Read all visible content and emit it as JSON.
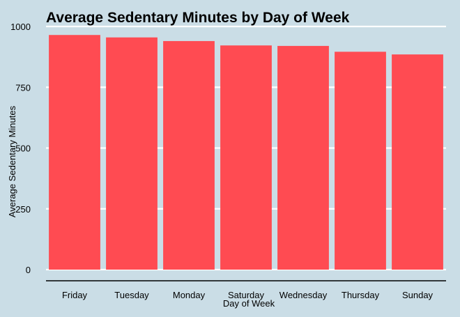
{
  "chart_data": {
    "type": "bar",
    "title": "Average Sedentary Minutes by Day of Week",
    "xlabel": "Day of Week",
    "ylabel": "Average Sedentary Minutes",
    "categories": [
      "Friday",
      "Tuesday",
      "Monday",
      "Saturday",
      "Wednesday",
      "Thursday",
      "Sunday"
    ],
    "values": [
      965,
      955,
      940,
      922,
      920,
      896,
      885
    ],
    "yticks": [
      "0",
      "250",
      "500",
      "750",
      "1000"
    ],
    "ylim": [
      0,
      1000
    ],
    "grid": "horizontal",
    "legend": "none",
    "bar_color": "#ff4b52",
    "background_color": "#cadde6",
    "gridline_color": "#ffffff",
    "axis_color": "#000000"
  }
}
